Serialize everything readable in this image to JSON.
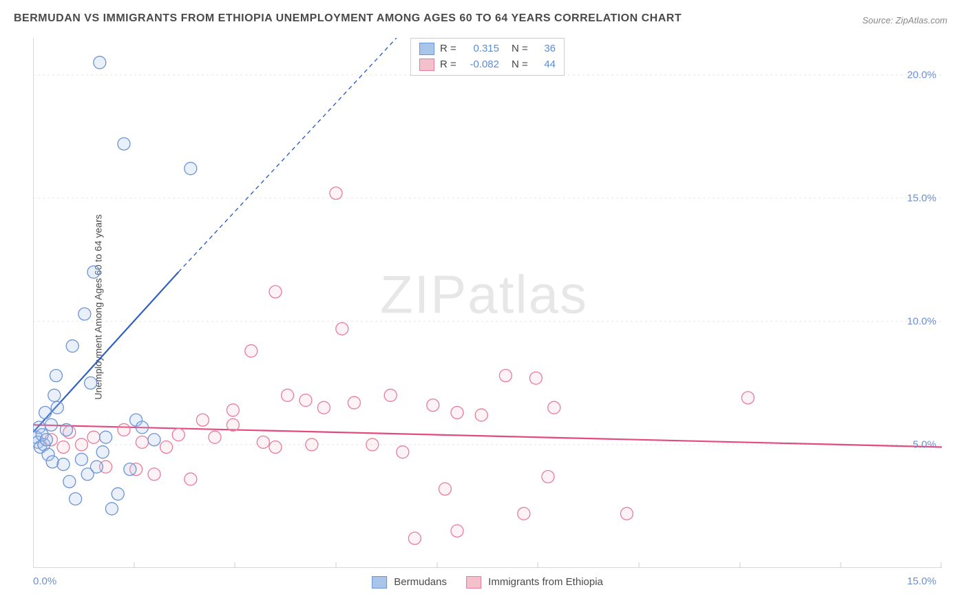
{
  "title": "BERMUDAN VS IMMIGRANTS FROM ETHIOPIA UNEMPLOYMENT AMONG AGES 60 TO 64 YEARS CORRELATION CHART",
  "source": "Source: ZipAtlas.com",
  "ylabel": "Unemployment Among Ages 60 to 64 years",
  "watermark_a": "ZIP",
  "watermark_b": "atlas",
  "chart": {
    "type": "scatter",
    "xlim": [
      0,
      15
    ],
    "ylim": [
      0,
      21.5
    ],
    "y_ticks": [
      5,
      10,
      15,
      20
    ],
    "y_tick_labels": [
      "5.0%",
      "10.0%",
      "15.0%",
      "20.0%"
    ],
    "x_tick_left": "0.0%",
    "x_tick_right": "15.0%",
    "x_minor_ticks": [
      1.67,
      3.33,
      5.0,
      6.67,
      8.33,
      10.0,
      11.67,
      13.33
    ],
    "background_color": "#ffffff",
    "grid_color": "#e5e5e5",
    "axis_color": "#cccccc",
    "marker_radius": 9,
    "marker_stroke_width": 1.3,
    "marker_fill_opacity_a": 0.25,
    "marker_fill_opacity_b": 0.2,
    "series_a": {
      "name": "Bermudans",
      "fill": "#a9c5ea",
      "stroke": "#6b93d6",
      "r_value": "0.315",
      "n_value": "36",
      "trend": {
        "x1": 0,
        "y1": 5.5,
        "x2": 2.4,
        "y2": 12.0,
        "color": "#2f5fc1",
        "width": 2.2
      },
      "trend_ext": {
        "x1": 2.4,
        "y1": 12.0,
        "x2": 6.0,
        "y2": 21.5,
        "dash": "6,5"
      },
      "points": [
        [
          0.05,
          5.3
        ],
        [
          0.08,
          5.1
        ],
        [
          0.1,
          5.7
        ],
        [
          0.12,
          4.9
        ],
        [
          0.15,
          5.4
        ],
        [
          0.18,
          5.0
        ],
        [
          0.2,
          6.3
        ],
        [
          0.22,
          5.2
        ],
        [
          0.25,
          4.6
        ],
        [
          0.3,
          5.8
        ],
        [
          0.32,
          4.3
        ],
        [
          0.35,
          7.0
        ],
        [
          0.38,
          7.8
        ],
        [
          0.4,
          6.5
        ],
        [
          0.5,
          4.2
        ],
        [
          0.55,
          5.6
        ],
        [
          0.6,
          3.5
        ],
        [
          0.65,
          9.0
        ],
        [
          0.7,
          2.8
        ],
        [
          0.8,
          4.4
        ],
        [
          0.85,
          10.3
        ],
        [
          0.9,
          3.8
        ],
        [
          0.95,
          7.5
        ],
        [
          1.0,
          12.0
        ],
        [
          1.05,
          4.1
        ],
        [
          1.1,
          20.5
        ],
        [
          1.2,
          5.3
        ],
        [
          1.3,
          2.4
        ],
        [
          1.5,
          17.2
        ],
        [
          1.6,
          4.0
        ],
        [
          1.7,
          6.0
        ],
        [
          1.8,
          5.7
        ],
        [
          2.0,
          5.2
        ],
        [
          2.6,
          16.2
        ],
        [
          1.15,
          4.7
        ],
        [
          1.4,
          3.0
        ]
      ]
    },
    "series_b": {
      "name": "Immigrants from Ethiopia",
      "fill": "#f4c0cb",
      "stroke": "#e87b9a",
      "r_value": "-0.082",
      "n_value": "44",
      "trend": {
        "x1": 0,
        "y1": 5.8,
        "x2": 15,
        "y2": 4.9,
        "color": "#e24a7a",
        "width": 2.2
      },
      "points": [
        [
          0.3,
          5.2
        ],
        [
          0.5,
          4.9
        ],
        [
          0.6,
          5.5
        ],
        [
          0.8,
          5.0
        ],
        [
          1.0,
          5.3
        ],
        [
          1.2,
          4.1
        ],
        [
          1.5,
          5.6
        ],
        [
          1.7,
          4.0
        ],
        [
          1.8,
          5.1
        ],
        [
          2.0,
          3.8
        ],
        [
          2.2,
          4.9
        ],
        [
          2.4,
          5.4
        ],
        [
          2.6,
          3.6
        ],
        [
          3.3,
          5.8
        ],
        [
          3.3,
          6.4
        ],
        [
          3.6,
          8.8
        ],
        [
          3.8,
          5.1
        ],
        [
          4.0,
          11.2
        ],
        [
          4.0,
          4.9
        ],
        [
          4.2,
          7.0
        ],
        [
          4.5,
          6.8
        ],
        [
          4.6,
          5.0
        ],
        [
          5.0,
          15.2
        ],
        [
          5.1,
          9.7
        ],
        [
          5.3,
          6.7
        ],
        [
          5.6,
          5.0
        ],
        [
          6.1,
          4.7
        ],
        [
          6.3,
          1.2
        ],
        [
          6.6,
          6.6
        ],
        [
          6.8,
          3.2
        ],
        [
          7.0,
          1.5
        ],
        [
          7.0,
          6.3
        ],
        [
          7.4,
          6.2
        ],
        [
          7.8,
          7.8
        ],
        [
          8.1,
          2.2
        ],
        [
          8.3,
          7.7
        ],
        [
          8.5,
          3.7
        ],
        [
          8.6,
          6.5
        ],
        [
          9.8,
          2.2
        ],
        [
          11.8,
          6.9
        ],
        [
          4.8,
          6.5
        ],
        [
          5.9,
          7.0
        ],
        [
          3.0,
          5.3
        ],
        [
          2.8,
          6.0
        ]
      ]
    }
  },
  "legend_top": {
    "r_label": "R =",
    "n_label": "N ="
  }
}
